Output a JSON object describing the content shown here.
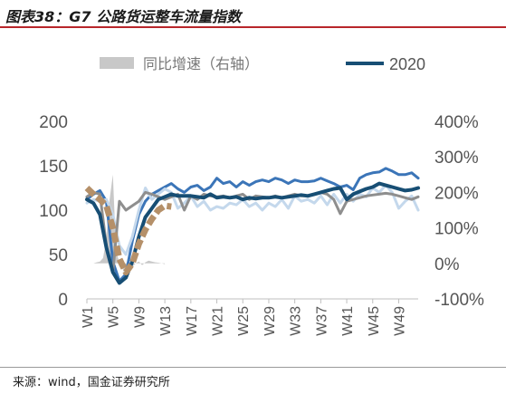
{
  "header": {
    "title": "图表38：G7 公路货运整车流量指数"
  },
  "footer": {
    "source": "来源：wind，国金证券研究所"
  },
  "chart_data": {
    "type": "line",
    "x_ticks": [
      "W1",
      "W5",
      "W9",
      "W13",
      "W17",
      "W21",
      "W25",
      "W29",
      "W33",
      "W37",
      "W41",
      "W45",
      "W49"
    ],
    "x_tick_weeks": [
      1,
      5,
      9,
      13,
      17,
      21,
      25,
      29,
      33,
      37,
      41,
      45,
      49
    ],
    "x_range": [
      1,
      52
    ],
    "y_left": {
      "ticks": [
        "0",
        "50",
        "100",
        "150",
        "200"
      ],
      "range": [
        0,
        200
      ]
    },
    "y_right": {
      "ticks": [
        "-100%",
        "0%",
        "100%",
        "200%",
        "300%",
        "400%"
      ],
      "range": [
        -100,
        400
      ]
    },
    "legend": {
      "position": "top",
      "entries": [
        {
          "label": "同比增速（右轴）"
        },
        {
          "label": "2020"
        }
      ]
    },
    "series": [
      {
        "name": "同比增速（右轴）",
        "axis": "right",
        "style": "area",
        "color": "#c8c8c8",
        "x": [
          1,
          1.5,
          2,
          2.5,
          3,
          3.5,
          4,
          4.5,
          5,
          5.5,
          6,
          6.5,
          7,
          7.5,
          8,
          8.5,
          9,
          9.5,
          10,
          10.5,
          11,
          11.5,
          12,
          12.5,
          13
        ],
        "values": [
          0,
          0,
          0,
          3,
          5,
          15,
          70,
          180,
          250,
          30,
          5,
          -15,
          -40,
          -20,
          -10,
          0,
          5,
          -5,
          3,
          8,
          5,
          3,
          2,
          0,
          -2
        ]
      },
      {
        "name": "",
        "axis": "left",
        "style": "line",
        "color": "#3b75b8",
        "x": [
          1,
          2,
          3,
          4,
          5,
          6,
          7,
          8,
          9,
          10,
          11,
          12,
          13,
          14,
          15,
          16,
          17,
          18,
          19,
          20,
          21,
          22,
          23,
          24,
          25,
          26,
          27,
          28,
          29,
          30,
          31,
          32,
          33,
          34,
          35,
          36,
          37,
          38,
          39,
          40,
          41,
          42,
          43,
          44,
          45,
          46,
          47,
          48,
          49,
          50,
          51,
          52
        ],
        "values": [
          112,
          118,
          122,
          110,
          42,
          20,
          28,
          65,
          95,
          110,
          118,
          122,
          126,
          130,
          124,
          120,
          126,
          128,
          122,
          126,
          136,
          130,
          132,
          126,
          132,
          128,
          132,
          134,
          132,
          136,
          134,
          130,
          134,
          132,
          132,
          133,
          136,
          133,
          130,
          126,
          128,
          123,
          136,
          140,
          142,
          143,
          147,
          144,
          140,
          140,
          142,
          136
        ]
      },
      {
        "name": "",
        "axis": "left",
        "style": "line",
        "color": "#c4d8ec",
        "x": [
          1,
          2,
          3,
          4,
          5,
          6,
          7,
          8,
          9,
          10,
          11,
          12,
          13,
          14,
          15,
          16,
          17,
          18,
          19,
          20,
          21,
          22,
          23,
          24,
          25,
          26,
          27,
          28,
          29,
          30,
          31,
          32,
          33,
          34,
          35,
          36,
          37,
          38,
          39,
          40,
          41,
          42,
          43,
          44,
          45,
          46,
          47,
          48,
          49,
          50,
          51,
          52
        ],
        "values": [
          108,
          112,
          110,
          112,
          95,
          60,
          50,
          70,
          100,
          125,
          112,
          118,
          124,
          120,
          102,
          108,
          116,
          104,
          110,
          100,
          104,
          102,
          108,
          106,
          112,
          104,
          108,
          100,
          108,
          104,
          112,
          102,
          116,
          110,
          112,
          108,
          116,
          106,
          118,
          108,
          118,
          110,
          118,
          115,
          125,
          120,
          128,
          120,
          102,
          110,
          116,
          100
        ]
      },
      {
        "name": "",
        "axis": "left",
        "style": "line",
        "color": "#8e8e8e",
        "x": [
          1,
          2,
          3,
          4,
          5,
          6,
          7,
          8,
          9,
          10,
          11,
          12,
          13,
          14,
          15,
          16,
          17,
          18,
          19,
          20,
          21,
          22,
          23,
          24,
          25,
          26,
          27,
          28,
          29,
          30,
          31,
          32,
          33,
          34,
          35,
          36,
          37,
          38,
          39,
          40,
          41,
          42,
          43,
          44,
          45,
          46,
          47,
          48,
          49,
          50,
          51,
          52
        ],
        "values": [
          115,
          120,
          118,
          60,
          30,
          110,
          100,
          105,
          110,
          120,
          118,
          115,
          112,
          115,
          118,
          100,
          116,
          112,
          118,
          116,
          115,
          116,
          114,
          116,
          118,
          112,
          116,
          115,
          114,
          116,
          114,
          116,
          118,
          116,
          116,
          118,
          120,
          118,
          112,
          96,
          110,
          112,
          114,
          116,
          117,
          118,
          119,
          118,
          116,
          114,
          112,
          115
        ]
      },
      {
        "name": "2020",
        "axis": "left",
        "style": "line",
        "color": "#174e74",
        "x": [
          1,
          2,
          3,
          4,
          5,
          6,
          7,
          8,
          9,
          10,
          11,
          12,
          13,
          14,
          15,
          16,
          17,
          18,
          19,
          20,
          21,
          22,
          23,
          24,
          25,
          26,
          27,
          28,
          29,
          30,
          31,
          32,
          33,
          34,
          35,
          36,
          37,
          38,
          39,
          40,
          41,
          42,
          43,
          44,
          45,
          46,
          47,
          48,
          49,
          50,
          51,
          52
        ],
        "values": [
          112,
          108,
          95,
          58,
          30,
          18,
          24,
          42,
          70,
          92,
          102,
          112,
          115,
          118,
          116,
          116,
          116,
          115,
          114,
          118,
          114,
          115,
          114,
          115,
          112,
          114,
          113,
          114,
          114,
          115,
          114,
          115,
          116,
          117,
          116,
          118,
          120,
          122,
          124,
          125,
          112,
          118,
          121,
          124,
          126,
          130,
          128,
          126,
          124,
          122,
          123,
          125
        ]
      },
      {
        "name": "",
        "axis": "left",
        "style": "dash",
        "color": "#b59069",
        "x": [
          1,
          2,
          3,
          4,
          5,
          6,
          7,
          8,
          9,
          10,
          11,
          12,
          13,
          14
        ],
        "values": [
          125,
          118,
          112,
          105,
          80,
          45,
          30,
          40,
          62,
          78,
          90,
          100,
          105,
          104
        ]
      }
    ]
  }
}
